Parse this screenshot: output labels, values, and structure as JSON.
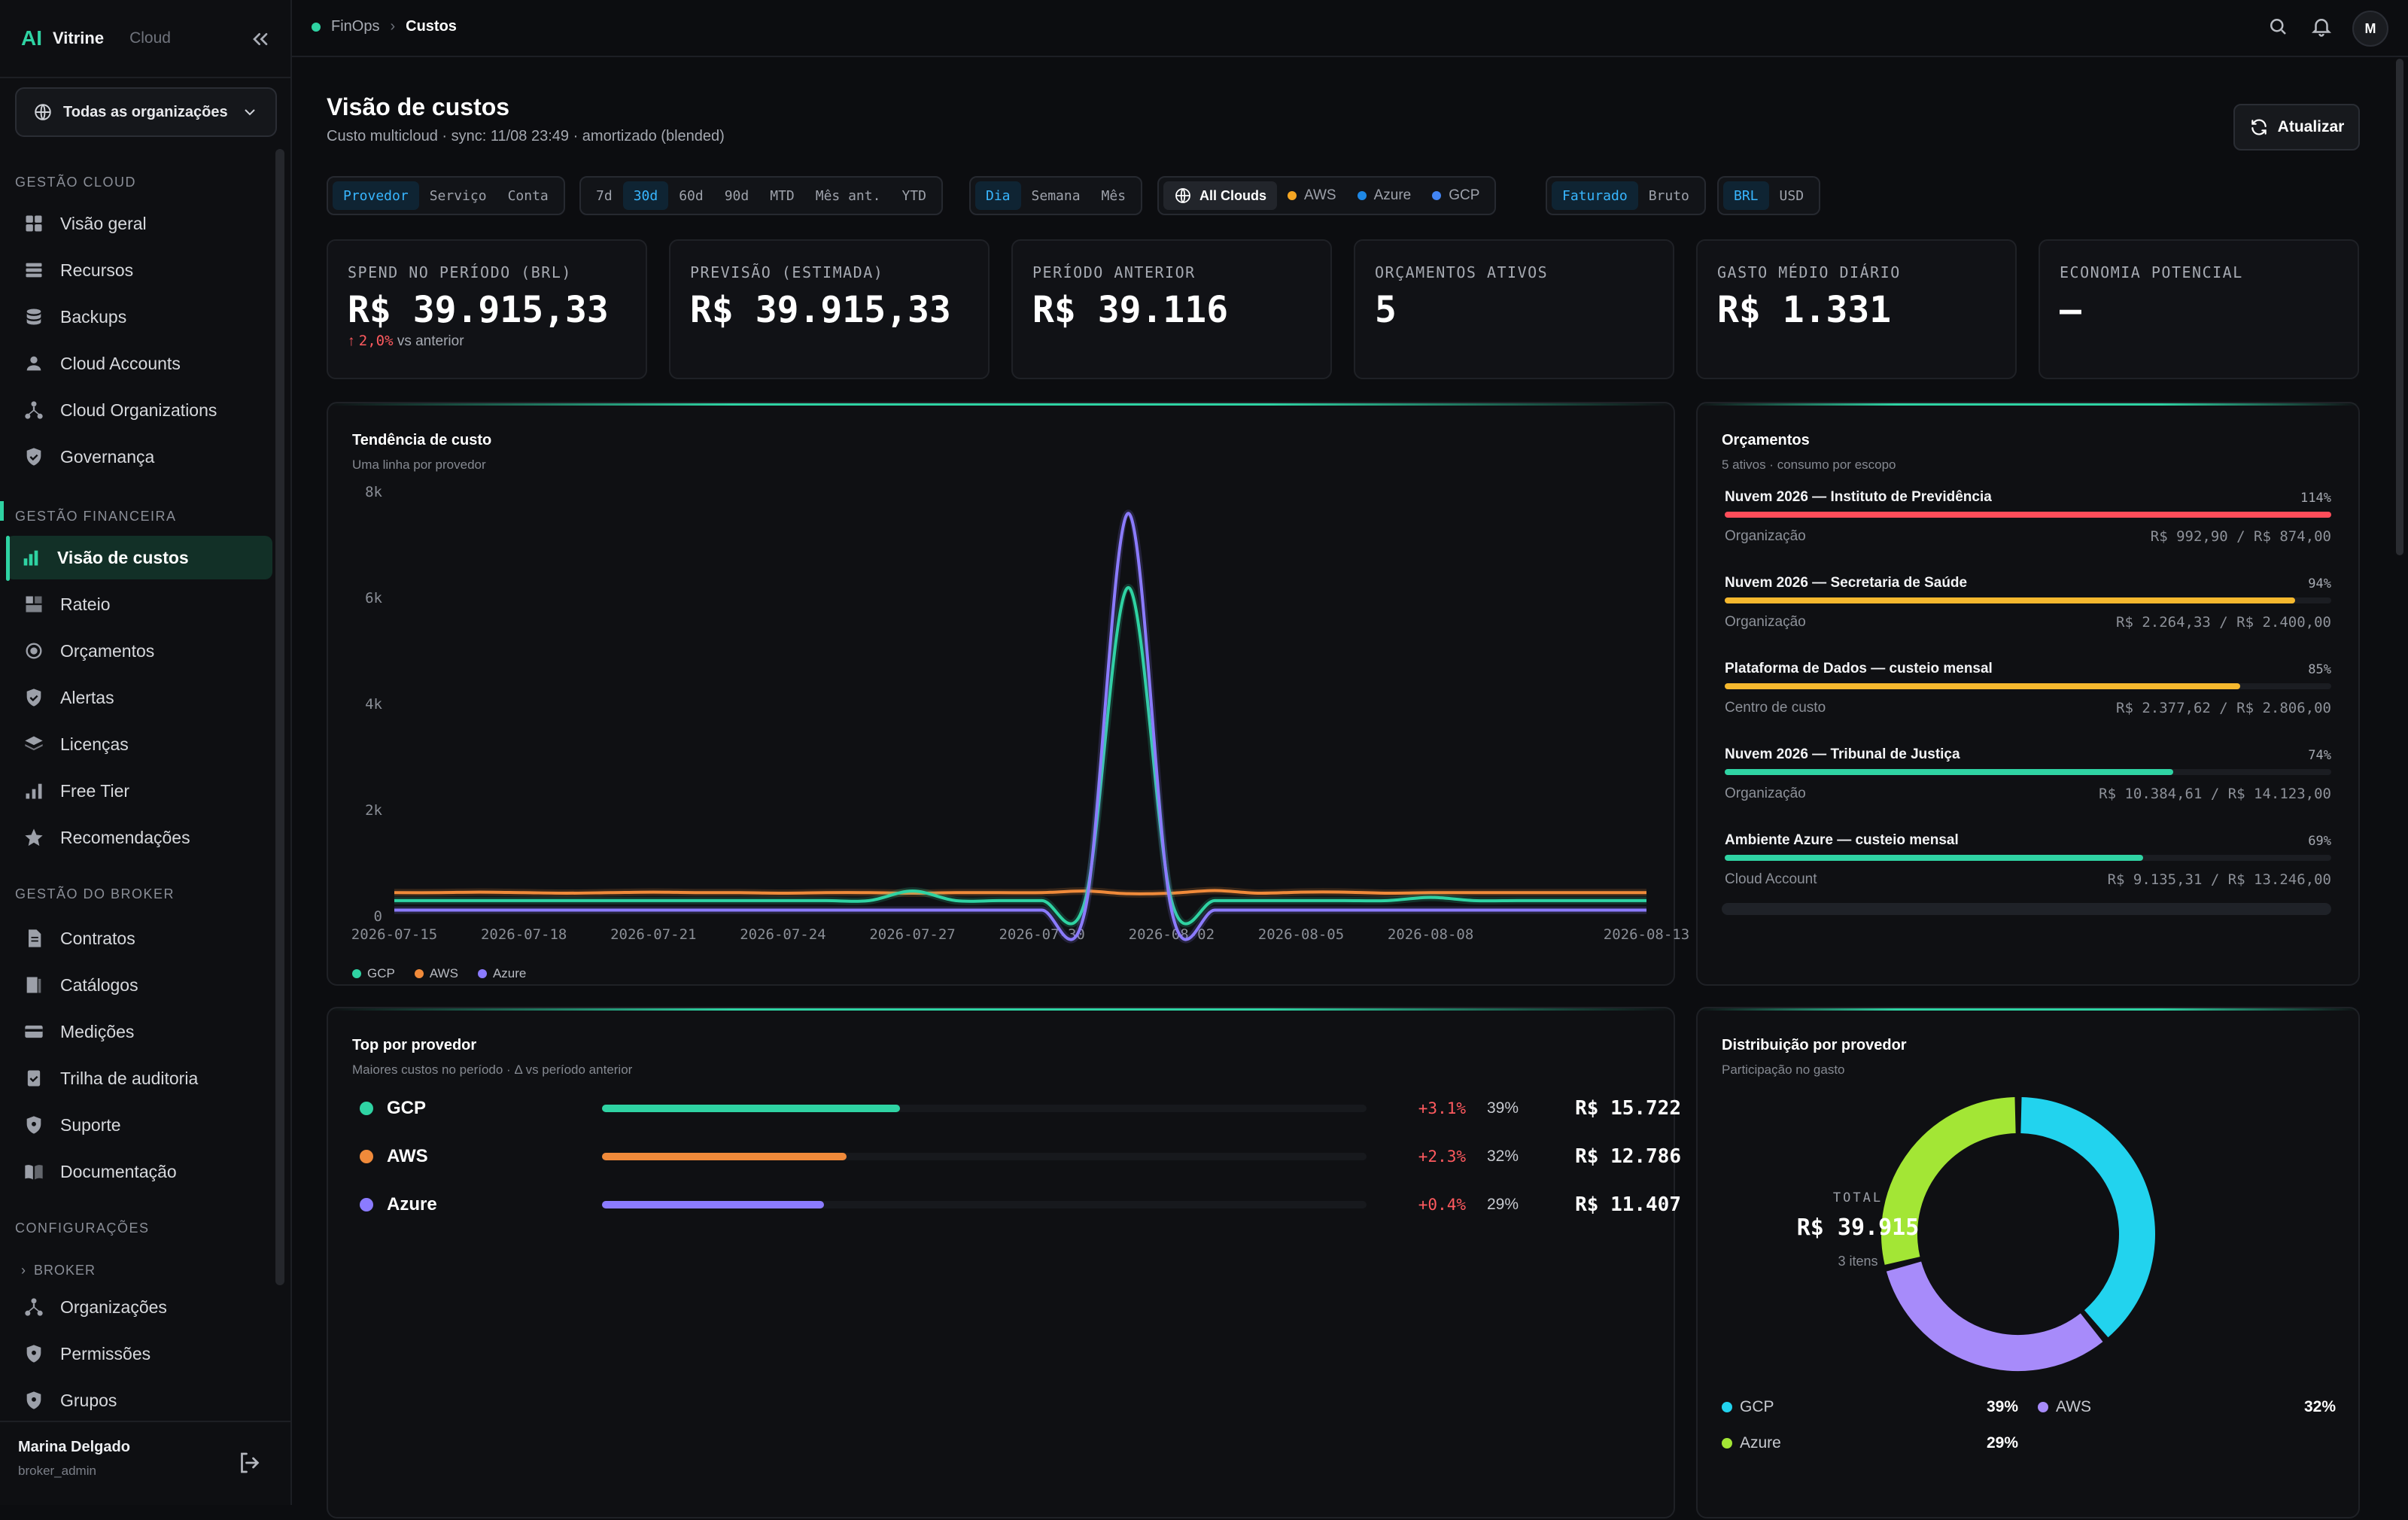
{
  "brand": {
    "name": "Vitrine",
    "tag": "Cloud"
  },
  "org_selector": {
    "label": "Todas as organizações"
  },
  "sidebar": {
    "sections": [
      {
        "title": "Gestão Cloud",
        "items": [
          "Visão geral",
          "Recursos",
          "Backups",
          "Cloud Accounts",
          "Cloud Organizations",
          "Governança"
        ]
      },
      {
        "title": "Gestão Financeira",
        "items": [
          "Visão de custos",
          "Rateio",
          "Orçamentos",
          "Alertas",
          "Licenças",
          "Free Tier",
          "Recomendações"
        ]
      },
      {
        "title": "Gestão do Broker",
        "items": [
          "Contratos",
          "Catálogos",
          "Medições",
          "Trilha de auditoria",
          "Suporte",
          "Documentação"
        ]
      },
      {
        "title": "Configurações",
        "items": [
          "Organizações",
          "Permissões",
          "Grupos"
        ]
      }
    ],
    "broker_toggle": "BROKER",
    "active_item": "Visão de custos"
  },
  "user": {
    "name": "Marina Delgado",
    "role": "broker_admin"
  },
  "breadcrumb": {
    "parent": "FinOps",
    "current": "Custos"
  },
  "topbar": {
    "avatar": "M"
  },
  "page": {
    "title": "Visão de custos",
    "subtitle": "Custo multicloud · sync: 11/08  23:49 · amortizado (blended)",
    "refresh_label": "Atualizar"
  },
  "filters": {
    "group_by": {
      "options": [
        "Provedor",
        "Serviço",
        "Conta"
      ],
      "selected": "Provedor"
    },
    "range": {
      "options": [
        "7d",
        "30d",
        "60d",
        "90d",
        "MTD",
        "Mês ant.",
        "YTD"
      ],
      "selected": "30d"
    },
    "granularity": {
      "options": [
        "Dia",
        "Semana",
        "Mês"
      ],
      "selected": "Dia"
    },
    "clouds": {
      "options": [
        "All Clouds",
        "AWS",
        "Azure",
        "GCP"
      ],
      "selected": "All Clouds"
    },
    "billing": {
      "options": [
        "Faturado",
        "Bruto"
      ],
      "selected": "Faturado"
    },
    "currency": {
      "options": [
        "BRL",
        "USD"
      ],
      "selected": "BRL"
    }
  },
  "kpis": [
    {
      "label": "Spend no período (BRL)",
      "value": "R$ 39.915,33",
      "delta": "2,0%",
      "delta_suffix": "vs anterior"
    },
    {
      "label": "Previsão (estimada)",
      "value": "R$ 39.915,33"
    },
    {
      "label": "Período anterior",
      "value": "R$ 39.116"
    },
    {
      "label": "Orçamentos ativos",
      "value": "5"
    },
    {
      "label": "Gasto médio diário",
      "value": "R$ 1.331"
    },
    {
      "label": "Economia potencial",
      "value": "—"
    }
  ],
  "trend": {
    "title": "Tendência de custo",
    "subtitle": "Uma linha por provedor"
  },
  "chart_data": {
    "type": "line",
    "title": "Tendência de custo",
    "x": [
      "2026-07-15",
      "2026-07-16",
      "2026-07-17",
      "2026-07-18",
      "2026-07-19",
      "2026-07-20",
      "2026-07-21",
      "2026-07-22",
      "2026-07-23",
      "2026-07-24",
      "2026-07-25",
      "2026-07-26",
      "2026-07-27",
      "2026-07-28",
      "2026-07-29",
      "2026-07-30",
      "2026-07-31",
      "2026-08-01",
      "2026-08-02",
      "2026-08-03",
      "2026-08-04",
      "2026-08-05",
      "2026-08-06",
      "2026-08-07",
      "2026-08-08",
      "2026-08-09",
      "2026-08-10",
      "2026-08-11",
      "2026-08-12",
      "2026-08-13"
    ],
    "x_ticks": [
      "2026-07-15",
      "2026-07-18",
      "2026-07-21",
      "2026-07-24",
      "2026-07-27",
      "2026-07-30",
      "2026-08-02",
      "2026-08-05",
      "2026-08-08",
      "2026-08-13"
    ],
    "y_ticks": [
      "0",
      "2k",
      "4k",
      "6k",
      "8k"
    ],
    "ylim": [
      0,
      8000
    ],
    "legend_position": "bottom-left",
    "series": [
      {
        "name": "GCP",
        "color": "#2fd3a3",
        "values": [
          300,
          300,
          300,
          300,
          300,
          300,
          300,
          300,
          300,
          300,
          300,
          300,
          480,
          300,
          300,
          300,
          300,
          6200,
          300,
          300,
          300,
          300,
          300,
          300,
          360,
          300,
          300,
          300,
          300,
          300
        ]
      },
      {
        "name": "AWS",
        "color": "#f08a3a",
        "values": [
          450,
          450,
          460,
          450,
          440,
          450,
          460,
          450,
          450,
          440,
          450,
          450,
          440,
          450,
          450,
          450,
          480,
          430,
          440,
          490,
          440,
          460,
          460,
          440,
          450,
          450,
          450,
          450,
          450,
          450
        ]
      },
      {
        "name": "Azure",
        "color": "#8b7bff",
        "values": [
          120,
          120,
          120,
          120,
          120,
          120,
          120,
          120,
          120,
          120,
          120,
          120,
          120,
          120,
          120,
          120,
          120,
          7600,
          120,
          120,
          120,
          120,
          120,
          120,
          120,
          120,
          120,
          120,
          120,
          120
        ]
      }
    ]
  },
  "budgets": {
    "title": "Orçamentos",
    "subtitle": "5 ativos · consumo por escopo",
    "items": [
      {
        "name": "Nuvem 2026 — Instituto de Previdência",
        "pct": "114%",
        "pct_value": 1.14,
        "kind": "Organização",
        "values": "R$ 992,90 / R$ 874,00",
        "color": "#ff4d5a"
      },
      {
        "name": "Nuvem 2026 — Secretaria de Saúde",
        "pct": "94%",
        "pct_value": 0.94,
        "kind": "Organização",
        "values": "R$ 2.264,33 / R$ 2.400,00",
        "color": "#f5b82e"
      },
      {
        "name": "Plataforma de Dados — custeio mensal",
        "pct": "85%",
        "pct_value": 0.85,
        "kind": "Centro de custo",
        "values": "R$ 2.377,62 / R$ 2.806,00",
        "color": "#f5b82e"
      },
      {
        "name": "Nuvem 2026 — Tribunal de Justiça",
        "pct": "74%",
        "pct_value": 0.74,
        "kind": "Organização",
        "values": "R$ 10.384,61 / R$ 14.123,00",
        "color": "#2fd3a3"
      },
      {
        "name": "Ambiente Azure — custeio mensal",
        "pct": "69%",
        "pct_value": 0.69,
        "kind": "Cloud Account",
        "values": "R$ 9.135,31 / R$ 13.246,00",
        "color": "#2fd3a3"
      }
    ]
  },
  "top_providers": {
    "title": "Top por provedor",
    "subtitle": "Maiores custos no período · Δ vs período anterior",
    "rows": [
      {
        "name": "GCP",
        "delta": "+3.1%",
        "pct": "39%",
        "share": 0.39,
        "value": "R$ 15.722",
        "color": "#2fd3a3"
      },
      {
        "name": "AWS",
        "delta": "+2.3%",
        "pct": "32%",
        "share": 0.32,
        "value": "R$ 12.786",
        "color": "#f08a3a"
      },
      {
        "name": "Azure",
        "delta": "+0.4%",
        "pct": "29%",
        "share": 0.29,
        "value": "R$ 11.407",
        "color": "#8b7bff"
      }
    ]
  },
  "distribution": {
    "title": "Distribuição por provedor",
    "subtitle": "Participação no gasto",
    "center_label": "TOTAL",
    "center_value": "R$ 39.915",
    "center_items": "3 itens",
    "slices": [
      {
        "name": "GCP",
        "pct": "39%",
        "value": 0.39,
        "color": "#22d3ee"
      },
      {
        "name": "AWS",
        "pct": "32%",
        "value": 0.32,
        "color": "#a78bfa"
      },
      {
        "name": "Azure",
        "pct": "29%",
        "value": 0.29,
        "color": "#a3e635"
      }
    ]
  }
}
